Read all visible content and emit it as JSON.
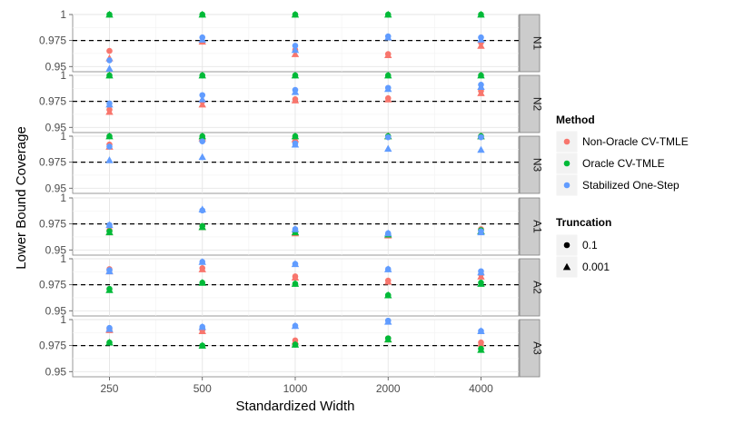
{
  "chart_data": {
    "type": "scatter",
    "xlabel": "Standardized Width",
    "ylabel": "Lower Bound Coverage",
    "x_scale": "log",
    "x_ticks": [
      "250",
      "500",
      "1000",
      "2000",
      "4000"
    ],
    "y_ticks": [
      "0.95",
      "0.975",
      "1"
    ],
    "ylim": [
      0.945,
      1.0
    ],
    "reference_line": 0.975,
    "reference_line_style": "dashed",
    "grid": true,
    "legend_position": "right",
    "panels": [
      "N1",
      "N2",
      "N3",
      "A1",
      "A2",
      "A3"
    ],
    "legend": {
      "color_title": "Method",
      "methods": [
        {
          "name": "Non-Oracle CV-TMLE",
          "color": "#F8766D"
        },
        {
          "name": "Oracle CV-TMLE",
          "color": "#00BA38"
        },
        {
          "name": "Stabilized One-Step",
          "color": "#619CFF"
        }
      ],
      "shape_title": "Truncation",
      "truncations": [
        {
          "label": "0.1",
          "shape": "circle"
        },
        {
          "label": "0.001",
          "shape": "triangle"
        }
      ]
    },
    "series": [
      {
        "panel": "N1",
        "method": "Non-Oracle CV-TMLE",
        "truncation": "0.1",
        "x": [
          250,
          500,
          1000,
          2000,
          4000
        ],
        "y": [
          0.965,
          0.974,
          0.966,
          0.962,
          0.973
        ]
      },
      {
        "panel": "N1",
        "method": "Non-Oracle CV-TMLE",
        "truncation": "0.001",
        "x": [
          250,
          500,
          1000,
          2000,
          4000
        ],
        "y": [
          0.958,
          0.974,
          0.962,
          0.961,
          0.97
        ]
      },
      {
        "panel": "N1",
        "method": "Oracle CV-TMLE",
        "truncation": "0.1",
        "x": [
          250,
          500,
          1000,
          2000,
          4000
        ],
        "y": [
          1.0,
          1.0,
          1.0,
          1.0,
          1.0
        ]
      },
      {
        "panel": "N1",
        "method": "Oracle CV-TMLE",
        "truncation": "0.001",
        "x": [
          250,
          500,
          1000,
          2000,
          4000
        ],
        "y": [
          1.0,
          1.0,
          1.0,
          1.0,
          1.0
        ]
      },
      {
        "panel": "N1",
        "method": "Stabilized One-Step",
        "truncation": "0.1",
        "x": [
          250,
          500,
          1000,
          2000,
          4000
        ],
        "y": [
          0.956,
          0.978,
          0.97,
          0.979,
          0.978
        ]
      },
      {
        "panel": "N1",
        "method": "Stabilized One-Step",
        "truncation": "0.001",
        "x": [
          250,
          500,
          1000,
          2000,
          4000
        ],
        "y": [
          0.948,
          0.976,
          0.966,
          0.978,
          0.976
        ]
      },
      {
        "panel": "N2",
        "method": "Non-Oracle CV-TMLE",
        "truncation": "0.1",
        "x": [
          250,
          500,
          1000,
          2000,
          4000
        ],
        "y": [
          0.967,
          0.975,
          0.977,
          0.978,
          0.985
        ]
      },
      {
        "panel": "N2",
        "method": "Non-Oracle CV-TMLE",
        "truncation": "0.001",
        "x": [
          250,
          500,
          1000,
          2000,
          4000
        ],
        "y": [
          0.965,
          0.972,
          0.976,
          0.977,
          0.983
        ]
      },
      {
        "panel": "N2",
        "method": "Oracle CV-TMLE",
        "truncation": "0.1",
        "x": [
          250,
          500,
          1000,
          2000,
          4000
        ],
        "y": [
          1.0,
          1.0,
          1.0,
          1.0,
          1.0
        ]
      },
      {
        "panel": "N2",
        "method": "Oracle CV-TMLE",
        "truncation": "0.001",
        "x": [
          250,
          500,
          1000,
          2000,
          4000
        ],
        "y": [
          1.0,
          1.0,
          1.0,
          1.0,
          1.0
        ]
      },
      {
        "panel": "N2",
        "method": "Stabilized One-Step",
        "truncation": "0.1",
        "x": [
          250,
          500,
          1000,
          2000,
          4000
        ],
        "y": [
          0.973,
          0.981,
          0.986,
          0.988,
          0.991
        ]
      },
      {
        "panel": "N2",
        "method": "Stabilized One-Step",
        "truncation": "0.001",
        "x": [
          250,
          500,
          1000,
          2000,
          4000
        ],
        "y": [
          0.972,
          0.977,
          0.984,
          0.987,
          0.989
        ]
      },
      {
        "panel": "N3",
        "method": "Non-Oracle CV-TMLE",
        "truncation": "0.1",
        "x": [
          250,
          500,
          1000,
          2000,
          4000
        ],
        "y": [
          0.992,
          0.997,
          0.995,
          1.0,
          1.0
        ]
      },
      {
        "panel": "N3",
        "method": "Non-Oracle CV-TMLE",
        "truncation": "0.001",
        "x": [
          250,
          500,
          1000,
          2000,
          4000
        ],
        "y": [
          0.99,
          0.998,
          0.997,
          1.0,
          1.0
        ]
      },
      {
        "panel": "N3",
        "method": "Oracle CV-TMLE",
        "truncation": "0.1",
        "x": [
          250,
          500,
          1000,
          2000,
          4000
        ],
        "y": [
          1.0,
          1.0,
          1.0,
          1.0,
          1.0
        ]
      },
      {
        "panel": "N3",
        "method": "Oracle CV-TMLE",
        "truncation": "0.001",
        "x": [
          250,
          500,
          1000,
          2000,
          4000
        ],
        "y": [
          1.0,
          1.0,
          1.0,
          1.0,
          1.0
        ]
      },
      {
        "panel": "N3",
        "method": "Stabilized One-Step",
        "truncation": "0.1",
        "x": [
          250,
          500,
          1000,
          2000,
          4000
        ],
        "y": [
          0.99,
          0.995,
          0.993,
          0.999,
          0.999
        ]
      },
      {
        "panel": "N3",
        "method": "Stabilized One-Step",
        "truncation": "0.001",
        "x": [
          250,
          500,
          1000,
          2000,
          4000
        ],
        "y": [
          0.977,
          0.98,
          0.992,
          0.988,
          0.987
        ]
      },
      {
        "panel": "A1",
        "method": "Non-Oracle CV-TMLE",
        "truncation": "0.1",
        "x": [
          250,
          500,
          1000,
          2000,
          4000
        ],
        "y": [
          0.969,
          0.973,
          0.967,
          0.965,
          0.97
        ]
      },
      {
        "panel": "A1",
        "method": "Non-Oracle CV-TMLE",
        "truncation": "0.001",
        "x": [
          250,
          500,
          1000,
          2000,
          4000
        ],
        "y": [
          0.967,
          0.972,
          0.966,
          0.964,
          0.968
        ]
      },
      {
        "panel": "A1",
        "method": "Oracle CV-TMLE",
        "truncation": "0.1",
        "x": [
          250,
          500,
          1000,
          2000,
          4000
        ],
        "y": [
          0.968,
          0.973,
          0.968,
          0.965,
          0.969
        ]
      },
      {
        "panel": "A1",
        "method": "Oracle CV-TMLE",
        "truncation": "0.001",
        "x": [
          250,
          500,
          1000,
          2000,
          4000
        ],
        "y": [
          0.967,
          0.972,
          0.967,
          0.965,
          0.968
        ]
      },
      {
        "panel": "A1",
        "method": "Stabilized One-Step",
        "truncation": "0.1",
        "x": [
          250,
          500,
          1000,
          2000,
          4000
        ],
        "y": [
          0.974,
          0.988,
          0.97,
          0.966,
          0.968
        ]
      },
      {
        "panel": "A1",
        "method": "Stabilized One-Step",
        "truncation": "0.001",
        "x": [
          250,
          500,
          1000,
          2000,
          4000
        ],
        "y": [
          0.974,
          0.989,
          0.97,
          0.966,
          0.967
        ]
      },
      {
        "panel": "A2",
        "method": "Non-Oracle CV-TMLE",
        "truncation": "0.1",
        "x": [
          250,
          500,
          1000,
          2000,
          4000
        ],
        "y": [
          0.99,
          0.991,
          0.983,
          0.979,
          0.985
        ]
      },
      {
        "panel": "A2",
        "method": "Non-Oracle CV-TMLE",
        "truncation": "0.001",
        "x": [
          250,
          500,
          1000,
          2000,
          4000
        ],
        "y": [
          0.988,
          0.99,
          0.982,
          0.978,
          0.983
        ]
      },
      {
        "panel": "A2",
        "method": "Oracle CV-TMLE",
        "truncation": "0.1",
        "x": [
          250,
          500,
          1000,
          2000,
          4000
        ],
        "y": [
          0.971,
          0.977,
          0.976,
          0.965,
          0.977
        ]
      },
      {
        "panel": "A2",
        "method": "Oracle CV-TMLE",
        "truncation": "0.001",
        "x": [
          250,
          500,
          1000,
          2000,
          4000
        ],
        "y": [
          0.97,
          0.977,
          0.976,
          0.965,
          0.976
        ]
      },
      {
        "panel": "A2",
        "method": "Stabilized One-Step",
        "truncation": "0.1",
        "x": [
          250,
          500,
          1000,
          2000,
          4000
        ],
        "y": [
          0.989,
          0.997,
          0.995,
          0.99,
          0.988
        ]
      },
      {
        "panel": "A2",
        "method": "Stabilized One-Step",
        "truncation": "0.001",
        "x": [
          250,
          500,
          1000,
          2000,
          4000
        ],
        "y": [
          0.988,
          0.997,
          0.995,
          0.99,
          0.987
        ]
      },
      {
        "panel": "A3",
        "method": "Non-Oracle CV-TMLE",
        "truncation": "0.1",
        "x": [
          250,
          500,
          1000,
          2000,
          4000
        ],
        "y": [
          0.991,
          0.99,
          0.98,
          0.982,
          0.978
        ]
      },
      {
        "panel": "A3",
        "method": "Non-Oracle CV-TMLE",
        "truncation": "0.001",
        "x": [
          250,
          500,
          1000,
          2000,
          4000
        ],
        "y": [
          0.99,
          0.989,
          0.979,
          0.981,
          0.977
        ]
      },
      {
        "panel": "A3",
        "method": "Oracle CV-TMLE",
        "truncation": "0.1",
        "x": [
          250,
          500,
          1000,
          2000,
          4000
        ],
        "y": [
          0.978,
          0.975,
          0.976,
          0.982,
          0.972
        ]
      },
      {
        "panel": "A3",
        "method": "Oracle CV-TMLE",
        "truncation": "0.001",
        "x": [
          250,
          500,
          1000,
          2000,
          4000
        ],
        "y": [
          0.978,
          0.975,
          0.976,
          0.981,
          0.971
        ]
      },
      {
        "panel": "A3",
        "method": "Stabilized One-Step",
        "truncation": "0.1",
        "x": [
          250,
          500,
          1000,
          2000,
          4000
        ],
        "y": [
          0.992,
          0.993,
          0.994,
          0.999,
          0.989
        ]
      },
      {
        "panel": "A3",
        "method": "Stabilized One-Step",
        "truncation": "0.001",
        "x": [
          250,
          500,
          1000,
          2000,
          4000
        ],
        "y": [
          0.991,
          0.993,
          0.994,
          0.998,
          0.989
        ]
      }
    ]
  }
}
